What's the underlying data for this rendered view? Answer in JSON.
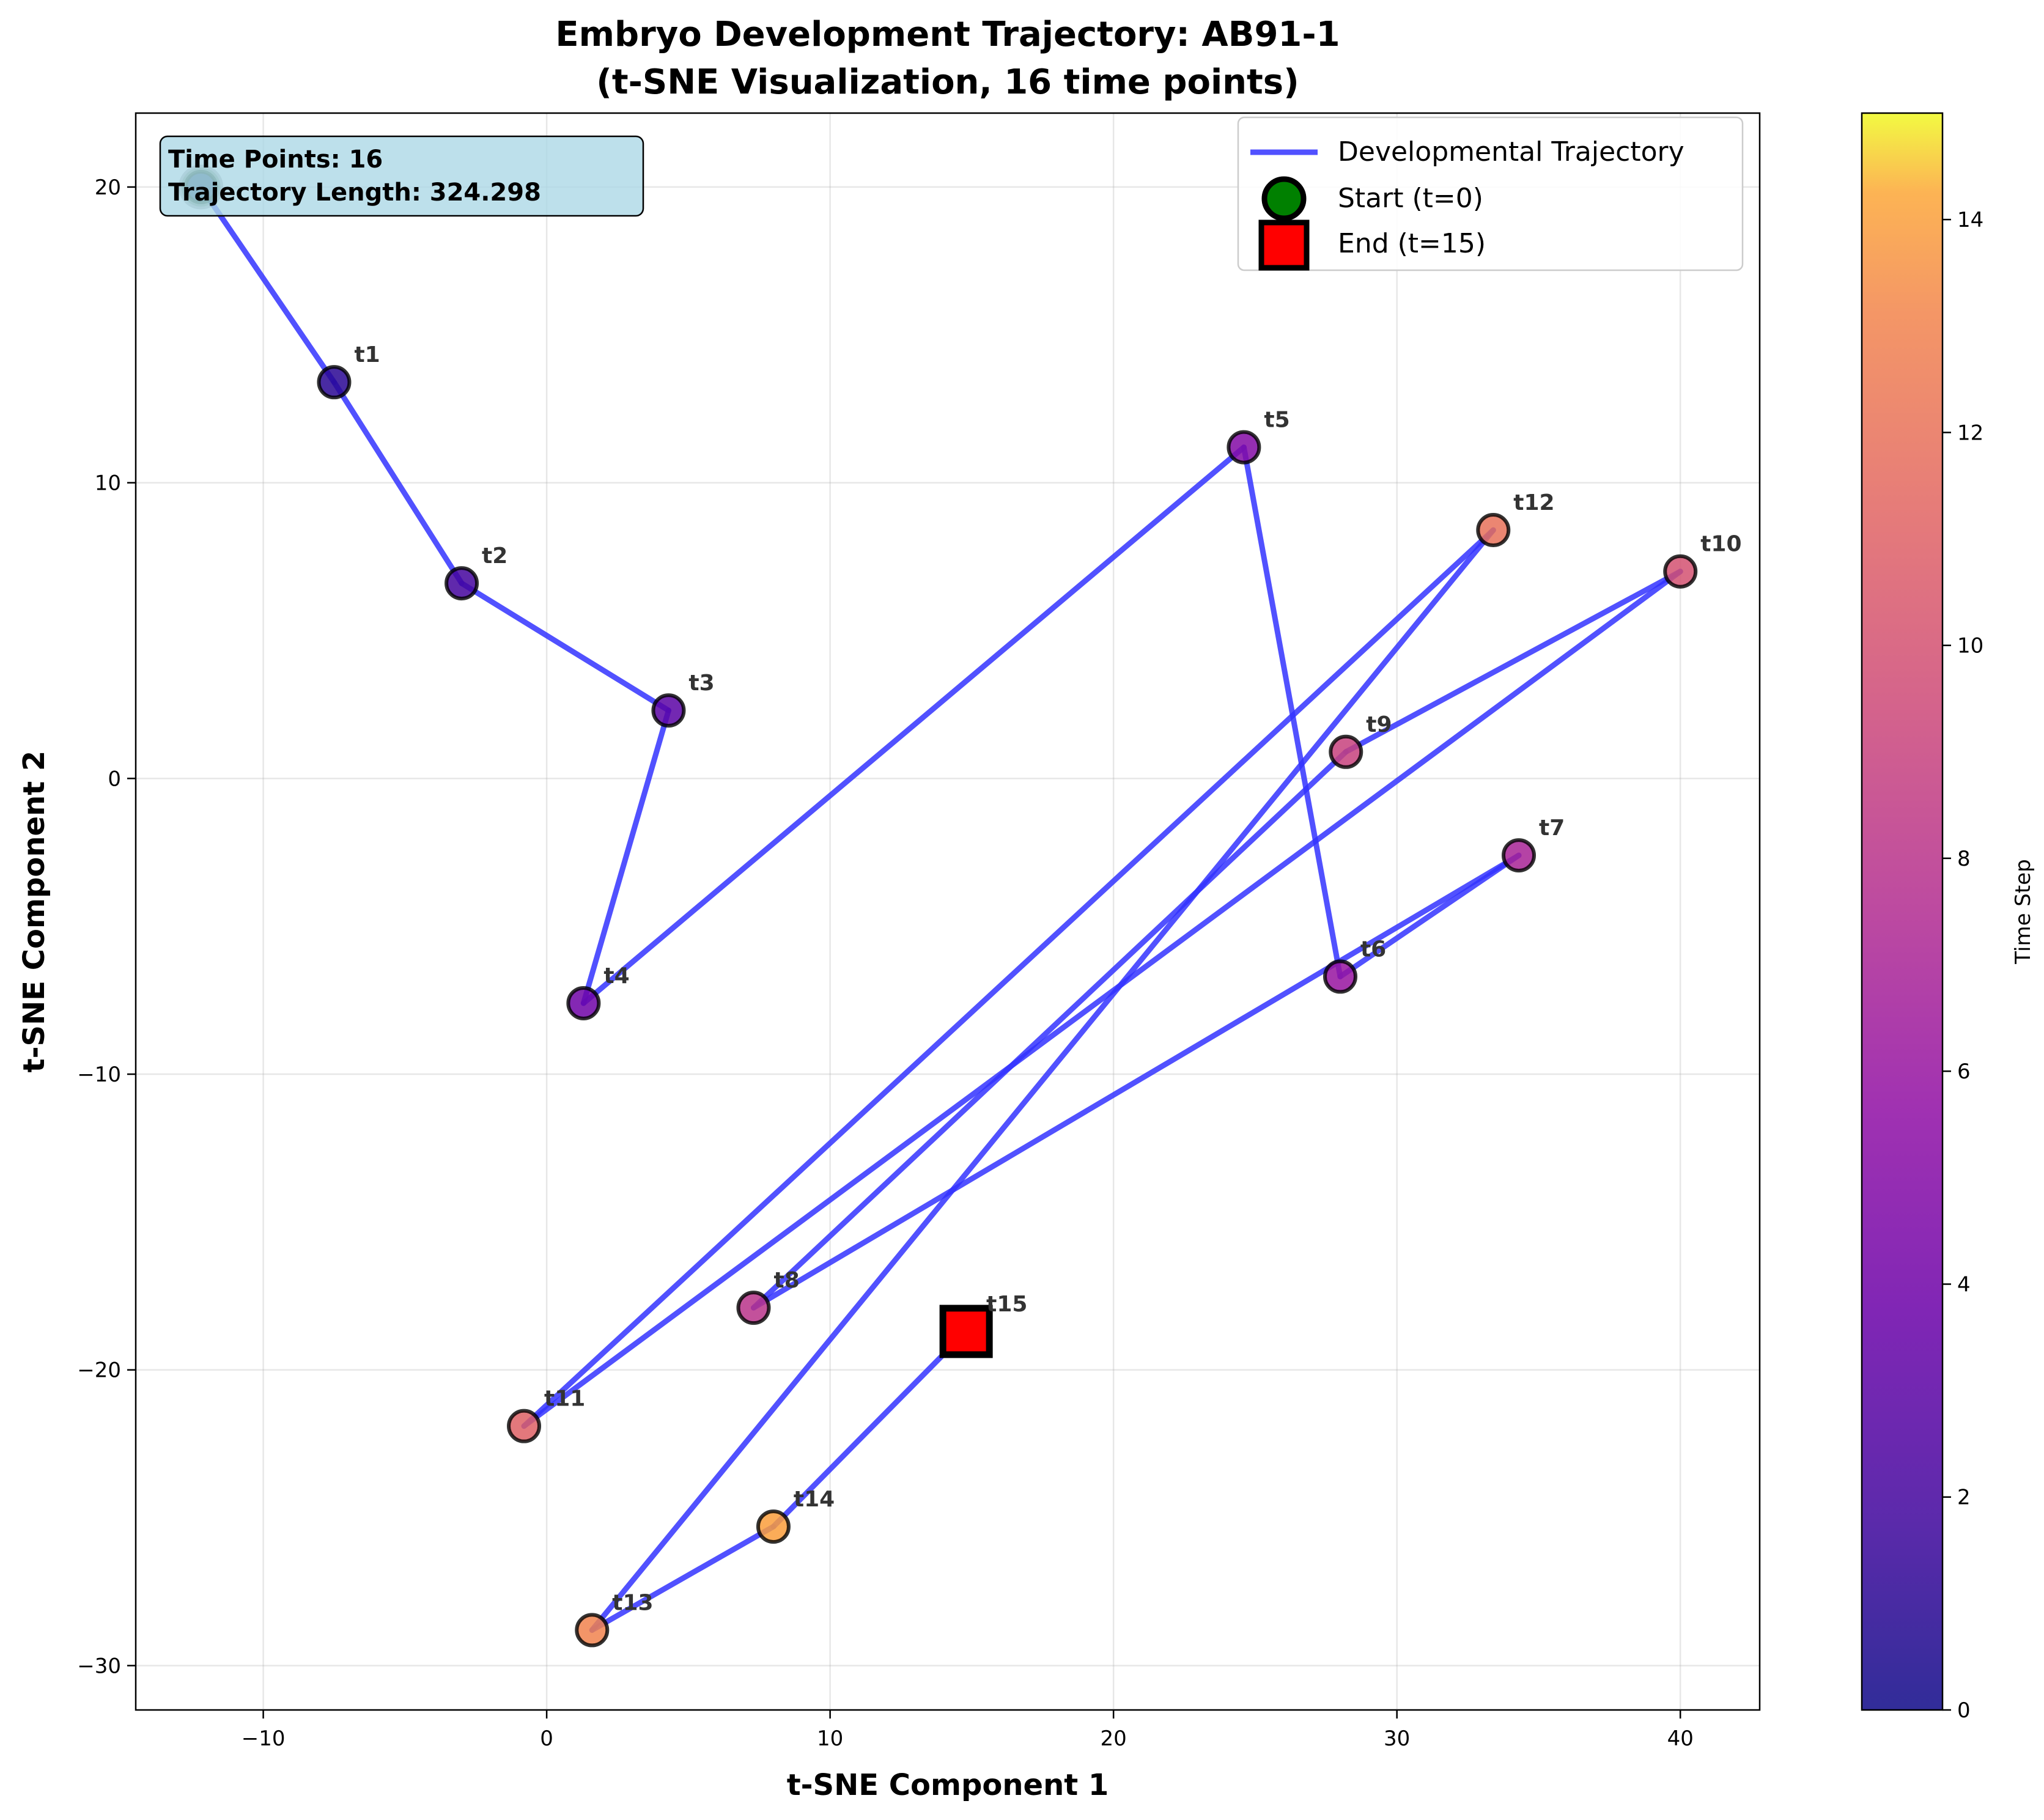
{
  "chart_data": {
    "type": "scatter",
    "title_line1": "Embryo Development Trajectory: AB91-1",
    "title_line2": "(t-SNE Visualization, 16 time points)",
    "xlabel": "t-SNE Component 1",
    "ylabel": "t-SNE Component 2",
    "xlim": [
      -14.5,
      42.8
    ],
    "ylim": [
      -31.5,
      22.5
    ],
    "xticks": [
      -10,
      0,
      10,
      20,
      30,
      40
    ],
    "yticks": [
      -30,
      -20,
      -10,
      0,
      10,
      20
    ],
    "grid": true,
    "colormap": "plasma",
    "colorbar": {
      "label": "Time Step",
      "range": [
        0,
        15
      ],
      "ticks": [
        0,
        2,
        4,
        6,
        8,
        10,
        12,
        14
      ]
    },
    "series": [
      {
        "name": "Developmental Trajectory",
        "color": "#3333ff",
        "points": [
          {
            "t": 0,
            "label": "",
            "x": -12.2,
            "y": 20.0
          },
          {
            "t": 1,
            "label": "t1",
            "x": -7.5,
            "y": 13.4
          },
          {
            "t": 2,
            "label": "t2",
            "x": -3.0,
            "y": 6.6
          },
          {
            "t": 3,
            "label": "t3",
            "x": 4.3,
            "y": 2.3
          },
          {
            "t": 4,
            "label": "t4",
            "x": 1.3,
            "y": -7.6
          },
          {
            "t": 5,
            "label": "t5",
            "x": 24.6,
            "y": 11.2
          },
          {
            "t": 6,
            "label": "t6",
            "x": 28.0,
            "y": -6.7
          },
          {
            "t": 7,
            "label": "t7",
            "x": 34.3,
            "y": -2.6
          },
          {
            "t": 8,
            "label": "t8",
            "x": 7.3,
            "y": -17.9
          },
          {
            "t": 9,
            "label": "t9",
            "x": 28.2,
            "y": 0.9
          },
          {
            "t": 10,
            "label": "t10",
            "x": 40.0,
            "y": 7.0
          },
          {
            "t": 11,
            "label": "t11",
            "x": -0.8,
            "y": -21.9
          },
          {
            "t": 12,
            "label": "t12",
            "x": 33.4,
            "y": 8.4
          },
          {
            "t": 13,
            "label": "t13",
            "x": 1.6,
            "y": -28.8
          },
          {
            "t": 14,
            "label": "t14",
            "x": 8.0,
            "y": -25.3
          },
          {
            "t": 15,
            "label": "t15",
            "x": 14.8,
            "y": -18.7
          }
        ]
      }
    ],
    "legend": {
      "position": "top-right",
      "entries": [
        {
          "label": "Developmental Trajectory",
          "marker": "line",
          "color": "#3333ff"
        },
        {
          "label": "Start (t=0)",
          "marker": "circle",
          "color": "#008000"
        },
        {
          "label": "End (t=15)",
          "marker": "square",
          "color": "#ff0000"
        }
      ]
    },
    "info_box": {
      "line1": "Time Points: 16",
      "line2": "Trajectory Length: 324.298",
      "position": "top-left",
      "color": "#add8e6"
    }
  }
}
